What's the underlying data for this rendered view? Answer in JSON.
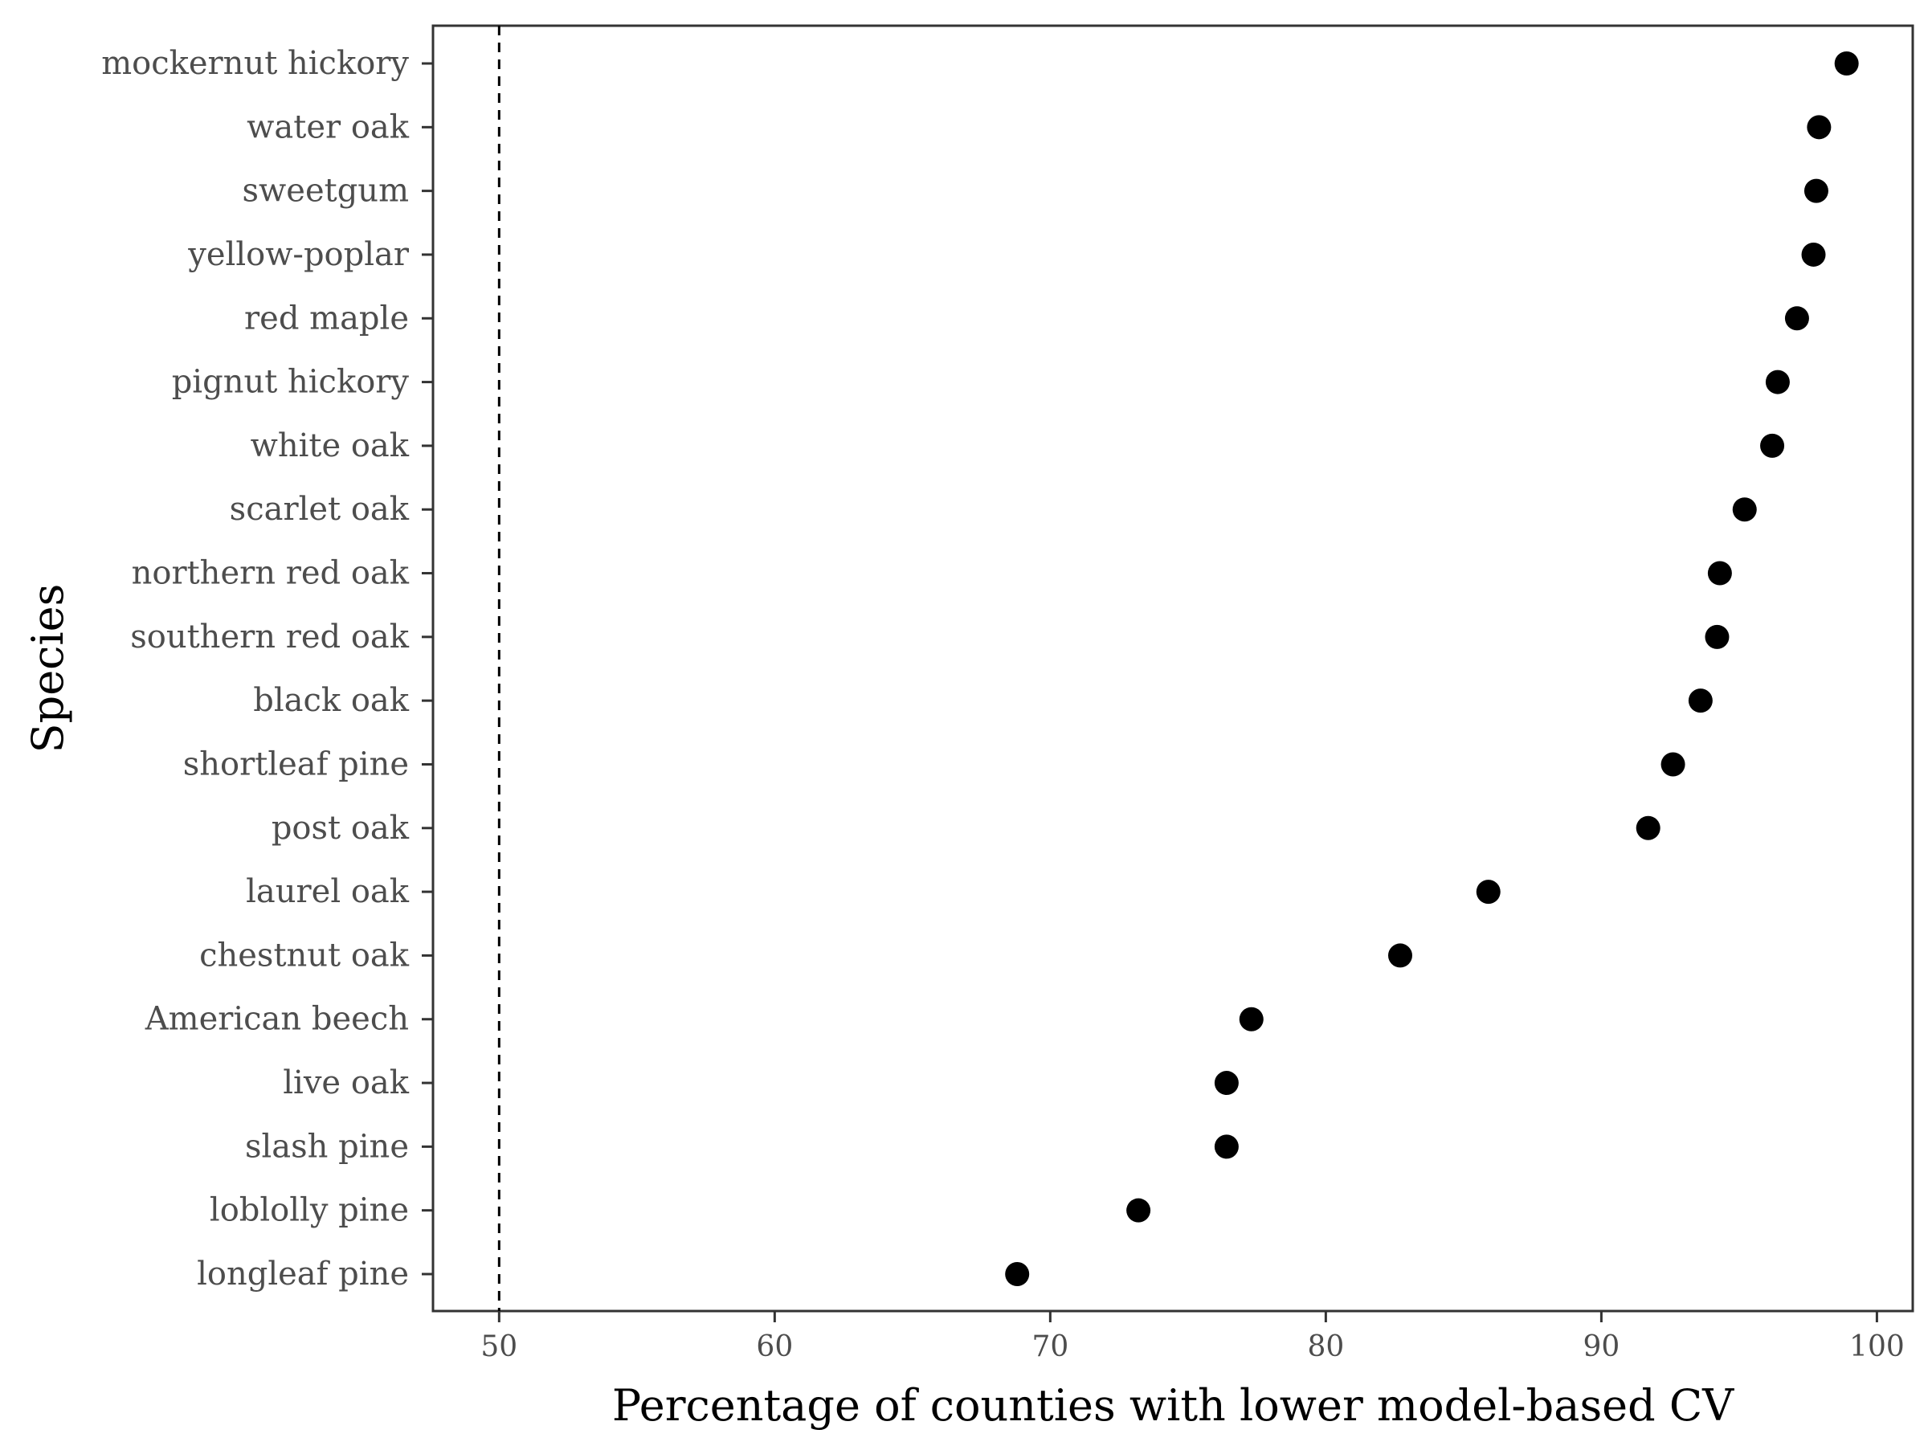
{
  "chart_data": {
    "type": "scatter",
    "title": "",
    "xlabel": "Percentage of counties with lower model-based CV",
    "ylabel": "Species",
    "xlim": [
      47.6,
      101.3
    ],
    "xticks": [
      50,
      60,
      70,
      80,
      90,
      100
    ],
    "reference_line": {
      "x": 50,
      "style": "dashed"
    },
    "grid": false,
    "legend": "none",
    "colors": {
      "point": "#000000",
      "axis": "#333333",
      "tick_label": "#4d4d4d"
    },
    "categories": [
      "mockernut hickory",
      "water oak",
      "sweetgum",
      "yellow-poplar",
      "red maple",
      "pignut hickory",
      "white oak",
      "scarlet oak",
      "northern red oak",
      "southern red oak",
      "black oak",
      "shortleaf pine",
      "post oak",
      "laurel oak",
      "chestnut oak",
      "American beech",
      "live oak",
      "slash pine",
      "loblolly pine",
      "longleaf pine"
    ],
    "values": [
      98.9,
      97.9,
      97.8,
      97.7,
      97.1,
      96.4,
      96.2,
      95.2,
      94.3,
      94.2,
      93.6,
      92.6,
      91.7,
      85.9,
      82.7,
      77.3,
      76.4,
      76.4,
      73.2,
      68.8
    ]
  }
}
